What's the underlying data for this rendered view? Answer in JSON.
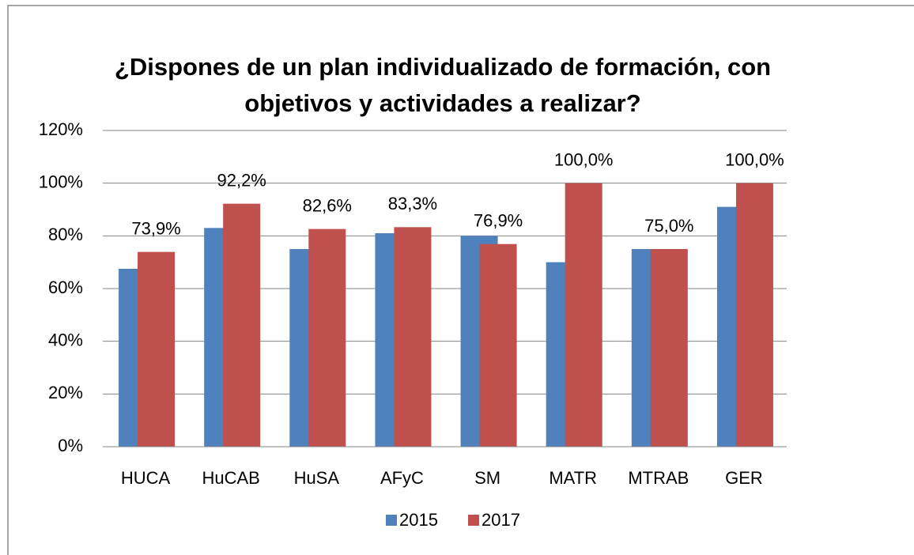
{
  "chart_data": {
    "type": "bar",
    "title": "¿Dispones de un plan individualizado de formación, con objetivos y actividades a realizar?",
    "categories": [
      "HUCA",
      "HuCAB",
      "HuSA",
      "AFyC",
      "SM",
      "MATR",
      "MTRAB",
      "GER"
    ],
    "series": [
      {
        "name": "2015",
        "color": "#4f81bd",
        "values": [
          67.5,
          83,
          75,
          81,
          80,
          70,
          75,
          91
        ]
      },
      {
        "name": "2017",
        "color": "#c0504d",
        "values": [
          73.9,
          92.2,
          82.6,
          83.3,
          76.9,
          100,
          75,
          100
        ],
        "value_labels": [
          "73,9%",
          "92,2%",
          "82,6%",
          "83,3%",
          "76,9%",
          "100,0%",
          "75,0%",
          "100,0%"
        ]
      }
    ],
    "ylim": [
      0,
      120
    ],
    "yticks": [
      {
        "value": 0,
        "label": "0%"
      },
      {
        "value": 20,
        "label": "20%"
      },
      {
        "value": 40,
        "label": "40%"
      },
      {
        "value": 60,
        "label": "60%"
      },
      {
        "value": 80,
        "label": "80%"
      },
      {
        "value": 100,
        "label": "100%"
      },
      {
        "value": 120,
        "label": "120%"
      }
    ],
    "grid": true,
    "legend": "bottom"
  }
}
